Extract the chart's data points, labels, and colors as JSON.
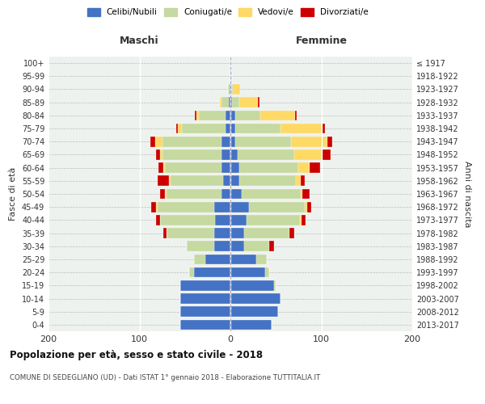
{
  "age_groups": [
    "0-4",
    "5-9",
    "10-14",
    "15-19",
    "20-24",
    "25-29",
    "30-34",
    "35-39",
    "40-44",
    "45-49",
    "50-54",
    "55-59",
    "60-64",
    "65-69",
    "70-74",
    "75-79",
    "80-84",
    "85-89",
    "90-94",
    "95-99",
    "100+"
  ],
  "birth_years": [
    "2013-2017",
    "2008-2012",
    "2003-2007",
    "1998-2002",
    "1993-1997",
    "1988-1992",
    "1983-1987",
    "1978-1982",
    "1973-1977",
    "1968-1972",
    "1963-1967",
    "1958-1962",
    "1953-1957",
    "1948-1952",
    "1943-1947",
    "1938-1942",
    "1933-1937",
    "1928-1932",
    "1923-1927",
    "1918-1922",
    "≤ 1917"
  ],
  "maschi": {
    "celibi": [
      55,
      55,
      55,
      55,
      40,
      28,
      18,
      18,
      17,
      18,
      10,
      8,
      10,
      10,
      10,
      5,
      5,
      2,
      1,
      0,
      0
    ],
    "coniugati": [
      0,
      0,
      0,
      0,
      5,
      12,
      30,
      52,
      60,
      62,
      60,
      58,
      62,
      65,
      65,
      48,
      30,
      8,
      2,
      0,
      0
    ],
    "vedovi": [
      0,
      0,
      0,
      0,
      0,
      0,
      0,
      0,
      0,
      2,
      2,
      2,
      2,
      2,
      8,
      5,
      2,
      2,
      0,
      0,
      0
    ],
    "divorziati": [
      0,
      0,
      0,
      0,
      0,
      0,
      0,
      4,
      5,
      5,
      5,
      12,
      5,
      5,
      5,
      2,
      2,
      0,
      0,
      0,
      0
    ]
  },
  "femmine": {
    "nubili": [
      45,
      52,
      55,
      48,
      38,
      28,
      15,
      15,
      18,
      20,
      12,
      10,
      10,
      8,
      5,
      5,
      5,
      2,
      1,
      0,
      0
    ],
    "coniugate": [
      0,
      0,
      0,
      2,
      5,
      12,
      28,
      50,
      58,
      62,
      65,
      62,
      65,
      62,
      62,
      50,
      28,
      8,
      2,
      0,
      0
    ],
    "vedove": [
      0,
      0,
      0,
      0,
      0,
      0,
      0,
      0,
      2,
      2,
      2,
      5,
      12,
      30,
      40,
      45,
      38,
      20,
      8,
      2,
      0
    ],
    "divorziate": [
      0,
      0,
      0,
      0,
      0,
      0,
      5,
      5,
      5,
      5,
      8,
      5,
      12,
      10,
      5,
      4,
      2,
      2,
      0,
      0,
      0
    ]
  },
  "colors": {
    "celibi": "#4472c4",
    "coniugati": "#c5d9a0",
    "vedovi": "#ffd966",
    "divorziati": "#cc0000"
  },
  "xlim": 200,
  "title1": "Popolazione per età, sesso e stato civile - 2018",
  "title2": "COMUNE DI SEDEGLIANO (UD) - Dati ISTAT 1° gennaio 2018 - Elaborazione TUTTITALIA.IT",
  "xlabel_left": "Maschi",
  "xlabel_right": "Femmine",
  "ylabel_left": "Fasce di età",
  "ylabel_right": "Anni di nascita",
  "legend_labels": [
    "Celibi/Nubili",
    "Coniugati/e",
    "Vedovi/e",
    "Divorziati/e"
  ],
  "bg_color": "#eef2ee",
  "fig_bg": "#ffffff",
  "grid_color": "#ffffff",
  "dotted_grid_color": "#bbbbbb"
}
